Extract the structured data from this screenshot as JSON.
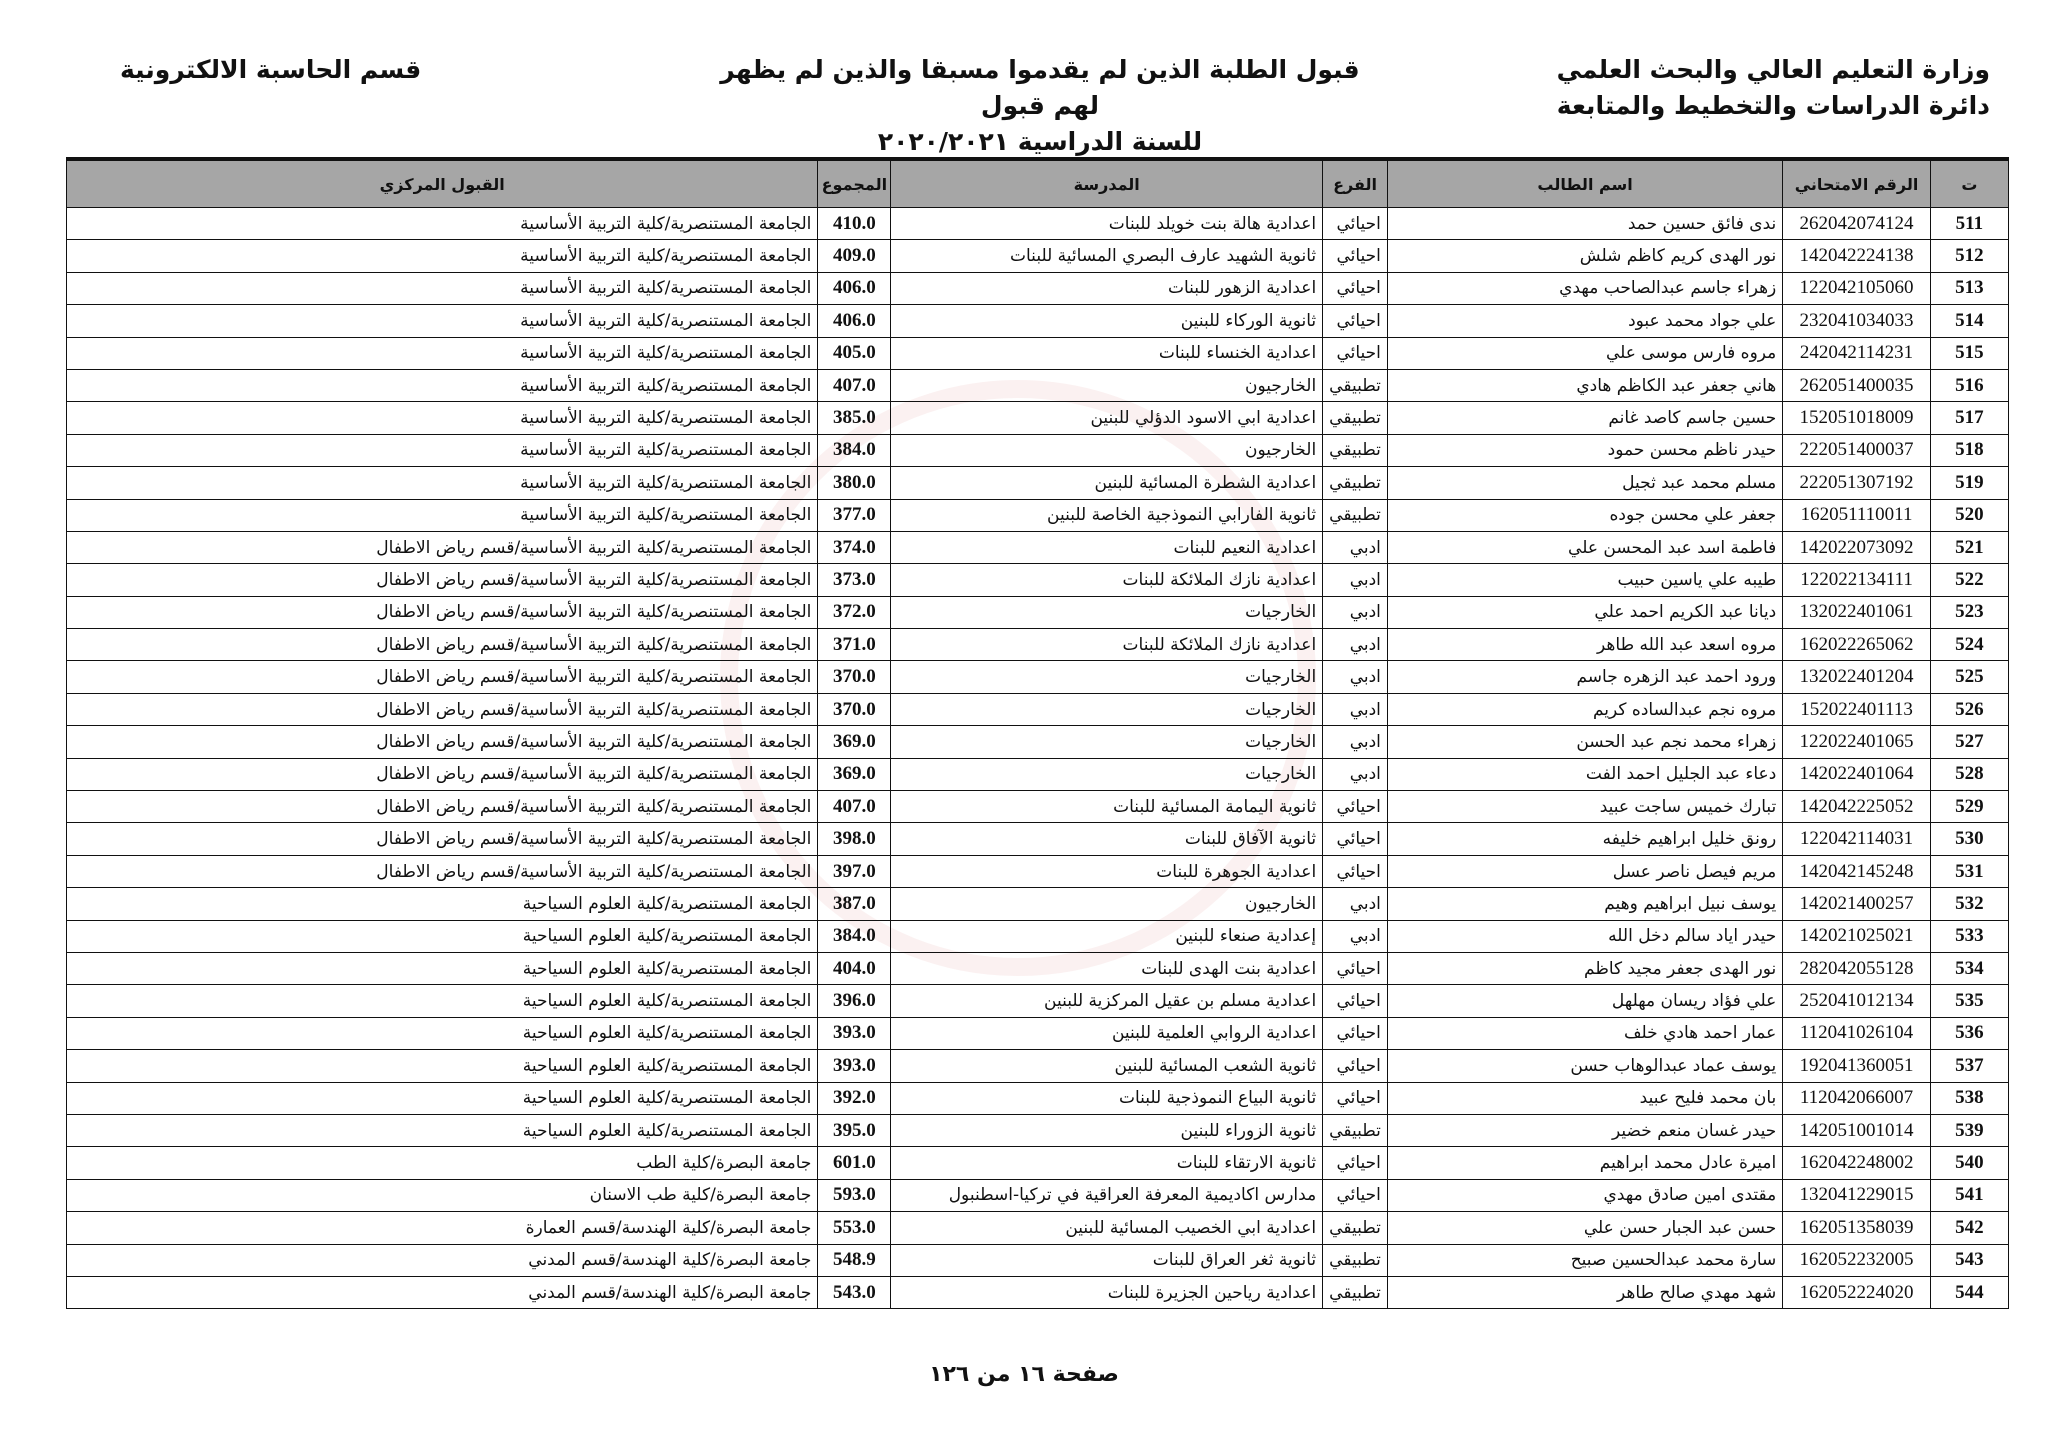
{
  "header": {
    "right_line1": "وزارة التعليم العالي والبحث العلمي",
    "right_line2": "دائرة الدراسات والتخطيط والمتابعة",
    "center_line1": "قبول الطلبة الذين لم يقدموا مسبقا والذين  لم يظهر لهم قبول",
    "center_line2": "للسنة الدراسية ٢٠٢٠/٢٠٢١",
    "left_line1": "قسم الحاسبة الالكترونية"
  },
  "table": {
    "columns": [
      "ت",
      "الرقم الامتحاني",
      "اسم الطالب",
      "الفرع",
      "المدرسة",
      "المجموع",
      "القبول المركزي"
    ],
    "rows": [
      [
        "511",
        "262042074124",
        "ندى فائق حسين حمد",
        "احيائي",
        "اعدادية هالة بنت خويلد للبنات",
        "410.0",
        "الجامعة المستنصرية/كلية التربية الأساسية"
      ],
      [
        "512",
        "142042224138",
        "نور الهدى كريم كاظم شلش",
        "احيائي",
        "ثانوية الشهيد عارف البصري المسائية للبنات",
        "409.0",
        "الجامعة المستنصرية/كلية التربية الأساسية"
      ],
      [
        "513",
        "122042105060",
        "زهراء جاسم عبدالصاحب مهدي",
        "احيائي",
        "اعدادية الزهور للبنات",
        "406.0",
        "الجامعة المستنصرية/كلية التربية الأساسية"
      ],
      [
        "514",
        "232041034033",
        "علي جواد محمد عبود",
        "احيائي",
        "ثانوية الوركاء للبنين",
        "406.0",
        "الجامعة المستنصرية/كلية التربية الأساسية"
      ],
      [
        "515",
        "242042114231",
        "مروه فارس موسى علي",
        "احيائي",
        "اعدادية الخنساء للبنات",
        "405.0",
        "الجامعة المستنصرية/كلية التربية الأساسية"
      ],
      [
        "516",
        "262051400035",
        "هاني جعفر عبد الكاظم هادي",
        "تطبيقي",
        "الخارجيون",
        "407.0",
        "الجامعة المستنصرية/كلية التربية الأساسية"
      ],
      [
        "517",
        "152051018009",
        "حسين جاسم كاصد غانم",
        "تطبيقي",
        "اعدادية ابي الاسود الدؤلي للبنين",
        "385.0",
        "الجامعة المستنصرية/كلية التربية الأساسية"
      ],
      [
        "518",
        "222051400037",
        "حيدر ناظم محسن حمود",
        "تطبيقي",
        "الخارجيون",
        "384.0",
        "الجامعة المستنصرية/كلية التربية الأساسية"
      ],
      [
        "519",
        "222051307192",
        "مسلم محمد عبد ثجيل",
        "تطبيقي",
        "اعدادية الشطرة المسائية للبنين",
        "380.0",
        "الجامعة المستنصرية/كلية التربية الأساسية"
      ],
      [
        "520",
        "162051110011",
        "جعفر علي محسن جوده",
        "تطبيقي",
        "ثانوية الفارابي النموذجية الخاصة للبنين",
        "377.0",
        "الجامعة المستنصرية/كلية التربية الأساسية"
      ],
      [
        "521",
        "142022073092",
        "فاطمة اسد عبد المحسن علي",
        "ادبي",
        "اعدادية النعيم للبنات",
        "374.0",
        "الجامعة المستنصرية/كلية التربية الأساسية/قسم رياض الاطفال"
      ],
      [
        "522",
        "122022134111",
        "طيبه علي ياسين حبيب",
        "ادبي",
        "اعدادية نازك الملائكة للبنات",
        "373.0",
        "الجامعة المستنصرية/كلية التربية الأساسية/قسم رياض الاطفال"
      ],
      [
        "523",
        "132022401061",
        "ديانا عبد الكريم احمد علي",
        "ادبي",
        "الخارجيات",
        "372.0",
        "الجامعة المستنصرية/كلية التربية الأساسية/قسم رياض الاطفال"
      ],
      [
        "524",
        "162022265062",
        "مروه اسعد عبد الله طاهر",
        "ادبي",
        "اعدادية نازك الملائكة للبنات",
        "371.0",
        "الجامعة المستنصرية/كلية التربية الأساسية/قسم رياض الاطفال"
      ],
      [
        "525",
        "132022401204",
        "ورود احمد عبد الزهره جاسم",
        "ادبي",
        "الخارجيات",
        "370.0",
        "الجامعة المستنصرية/كلية التربية الأساسية/قسم رياض الاطفال"
      ],
      [
        "526",
        "152022401113",
        "مروه نجم عبدالساده كريم",
        "ادبي",
        "الخارجيات",
        "370.0",
        "الجامعة المستنصرية/كلية التربية الأساسية/قسم رياض الاطفال"
      ],
      [
        "527",
        "122022401065",
        "زهراء محمد نجم عبد الحسن",
        "ادبي",
        "الخارجيات",
        "369.0",
        "الجامعة المستنصرية/كلية التربية الأساسية/قسم رياض الاطفال"
      ],
      [
        "528",
        "142022401064",
        "دعاء عبد الجليل احمد الفت",
        "ادبي",
        "الخارجيات",
        "369.0",
        "الجامعة المستنصرية/كلية التربية الأساسية/قسم رياض الاطفال"
      ],
      [
        "529",
        "142042225052",
        "تبارك خميس ساجت عبيد",
        "احيائي",
        "ثانوية اليمامة المسائية للبنات",
        "407.0",
        "الجامعة المستنصرية/كلية التربية الأساسية/قسم رياض الاطفال"
      ],
      [
        "530",
        "122042114031",
        "رونق خليل ابراهيم خليفه",
        "احيائي",
        "ثانوية الآفاق للبنات",
        "398.0",
        "الجامعة المستنصرية/كلية التربية الأساسية/قسم رياض الاطفال"
      ],
      [
        "531",
        "142042145248",
        "مريم فيصل ناصر عسل",
        "احيائي",
        "اعدادية الجوهرة للبنات",
        "397.0",
        "الجامعة المستنصرية/كلية التربية الأساسية/قسم رياض الاطفال"
      ],
      [
        "532",
        "142021400257",
        "يوسف نبيل ابراهيم وهيم",
        "ادبي",
        "الخارجيون",
        "387.0",
        "الجامعة المستنصرية/كلية العلوم السياحية"
      ],
      [
        "533",
        "142021025021",
        "حيدر اياد سالم دخل الله",
        "ادبي",
        "إعدادية صنعاء للبنين",
        "384.0",
        "الجامعة المستنصرية/كلية العلوم السياحية"
      ],
      [
        "534",
        "282042055128",
        "نور الهدى جعفر مجيد كاظم",
        "احيائي",
        "اعدادية بنت الهدى للبنات",
        "404.0",
        "الجامعة المستنصرية/كلية العلوم السياحية"
      ],
      [
        "535",
        "252041012134",
        "علي فؤاد ريسان مهلهل",
        "احيائي",
        "اعدادية مسلم بن عقيل المركزية للبنين",
        "396.0",
        "الجامعة المستنصرية/كلية العلوم السياحية"
      ],
      [
        "536",
        "112041026104",
        "عمار احمد هادي خلف",
        "احيائي",
        "اعدادية الروابي العلمية للبنين",
        "393.0",
        "الجامعة المستنصرية/كلية العلوم السياحية"
      ],
      [
        "537",
        "192041360051",
        "يوسف عماد عبدالوهاب حسن",
        "احيائي",
        "ثانوية الشعب المسائية للبنين",
        "393.0",
        "الجامعة المستنصرية/كلية العلوم السياحية"
      ],
      [
        "538",
        "112042066007",
        "بان محمد فليح عبيد",
        "احيائي",
        "ثانوية البياع النموذجية  للبنات",
        "392.0",
        "الجامعة المستنصرية/كلية العلوم السياحية"
      ],
      [
        "539",
        "142051001014",
        "حيدر غسان منعم خضير",
        "تطبيقي",
        "ثانوية الزوراء للبنين",
        "395.0",
        "الجامعة المستنصرية/كلية العلوم السياحية"
      ],
      [
        "540",
        "162042248002",
        "اميرة عادل محمد ابراهيم",
        "احيائي",
        "ثانوية الارتقاء للبنات",
        "601.0",
        "جامعة البصرة/كلية الطب"
      ],
      [
        "541",
        "132041229015",
        "مقتدى امين صادق مهدي",
        "احيائي",
        "مدارس اكاديمية المعرفة العراقية في تركيا-اسطنبول",
        "593.0",
        "جامعة البصرة/كلية طب الاسنان"
      ],
      [
        "542",
        "162051358039",
        "حسن عبد الجبار حسن علي",
        "تطبيقي",
        "اعدادية ابي الخصيب المسائية للبنين",
        "553.0",
        "جامعة البصرة/كلية الهندسة/قسم العمارة"
      ],
      [
        "543",
        "162052232005",
        "سارة محمد عبدالحسين صبيح",
        "تطبيقي",
        "ثانوية ثغر العراق للبنات",
        "548.9",
        "جامعة البصرة/كلية الهندسة/قسم المدني"
      ],
      [
        "544",
        "162052224020",
        "شهد مهدي صالح طاهر",
        "تطبيقي",
        "اعدادية رياحين الجزيرة للبنات",
        "543.0",
        "جامعة البصرة/كلية الهندسة/قسم المدني"
      ]
    ]
  },
  "footer": {
    "page_label": "صفحة ١٦ من ١٢٦"
  },
  "watermark": {
    "text": "Republic of Iraq Ministry of Higher Education and Scientific Research"
  }
}
